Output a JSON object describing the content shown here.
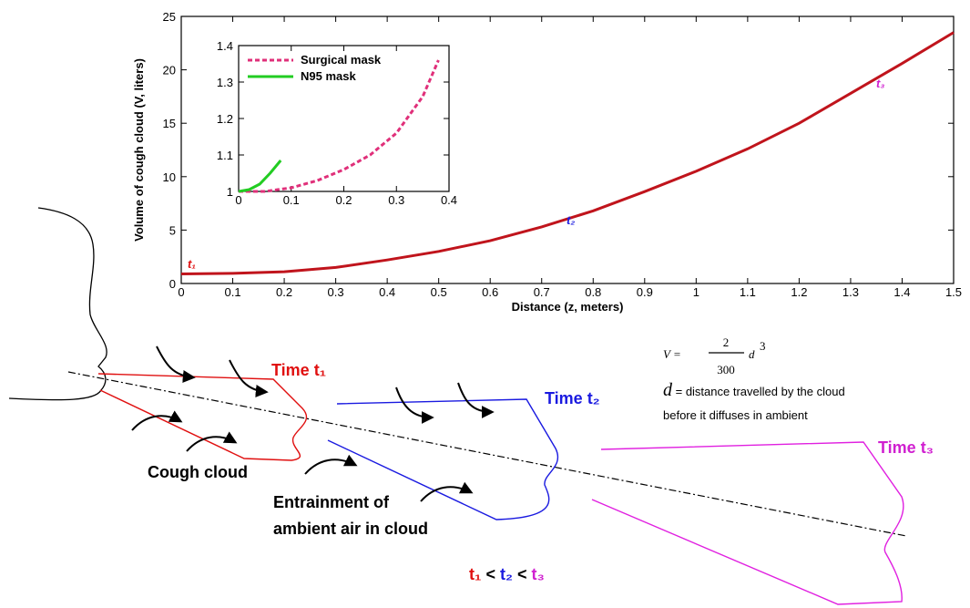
{
  "chart_data": [
    {
      "type": "line",
      "xlabel": "Distance (z, meters)",
      "ylabel": "Volume of cough cloud (V, liters)",
      "x": [
        0,
        0.1,
        0.2,
        0.3,
        0.4,
        0.5,
        0.6,
        0.7,
        0.8,
        0.9,
        1.0,
        1.1,
        1.2,
        1.3,
        1.4,
        1.5
      ],
      "series": [
        {
          "color": "#c0141c",
          "values": [
            0.9,
            0.95,
            1.1,
            1.5,
            2.2,
            3.0,
            4.0,
            5.3,
            6.8,
            8.6,
            10.5,
            12.6,
            15.0,
            17.8,
            20.6,
            23.5
          ]
        }
      ],
      "point_labels": [
        {
          "text": "t₁",
          "color": "#e01010"
        },
        {
          "text": "t₂",
          "color": "#1a1ae0"
        },
        {
          "text": "t₃",
          "color": "#d020d0"
        }
      ],
      "xlim": [
        0,
        1.5
      ],
      "ylim": [
        0,
        25
      ],
      "xticks": [
        0,
        0.1,
        0.2,
        0.3,
        0.4,
        0.5,
        0.6,
        0.7,
        0.8,
        0.9,
        1,
        1.1,
        1.2,
        1.3,
        1.4,
        1.5
      ],
      "yticks": [
        0,
        5,
        10,
        15,
        20,
        25
      ]
    },
    {
      "type": "line",
      "series": [
        {
          "name": "Surgical mask",
          "color": "#e0307a",
          "dashed": true,
          "x": [
            0,
            0.05,
            0.1,
            0.15,
            0.2,
            0.25,
            0.3,
            0.35,
            0.38
          ],
          "values": [
            1.0,
            1.0,
            1.01,
            1.03,
            1.06,
            1.1,
            1.16,
            1.26,
            1.36
          ]
        },
        {
          "name": "N95 mask",
          "color": "#22cc22",
          "dashed": false,
          "x": [
            0,
            0.02,
            0.04,
            0.06,
            0.08
          ],
          "values": [
            1.0,
            1.005,
            1.02,
            1.05,
            1.085
          ]
        }
      ],
      "legend": "upper left",
      "xlim": [
        0,
        0.4
      ],
      "ylim": [
        1,
        1.4
      ],
      "xticks": [
        0,
        0.1,
        0.2,
        0.3,
        0.4
      ],
      "yticks": [
        1,
        1.1,
        1.2,
        1.3,
        1.4
      ]
    }
  ],
  "diagram": {
    "time_labels": [
      "Time t₁",
      "Time t₂",
      "Time t₃"
    ],
    "cough_cloud": "Cough cloud",
    "entrainment": [
      "Entrainment of",
      "ambient air in cloud"
    ],
    "order": [
      "t₁",
      " < ",
      "t₂",
      " < ",
      "t₃"
    ],
    "formula": {
      "lhs": "V =",
      "numerator": "2",
      "denominator": "300",
      "var": "d",
      "power": "3"
    },
    "definition": {
      "var": "d",
      "text": " = distance travelled by the cloud",
      "line2": "before it diffuses in ambient"
    }
  }
}
